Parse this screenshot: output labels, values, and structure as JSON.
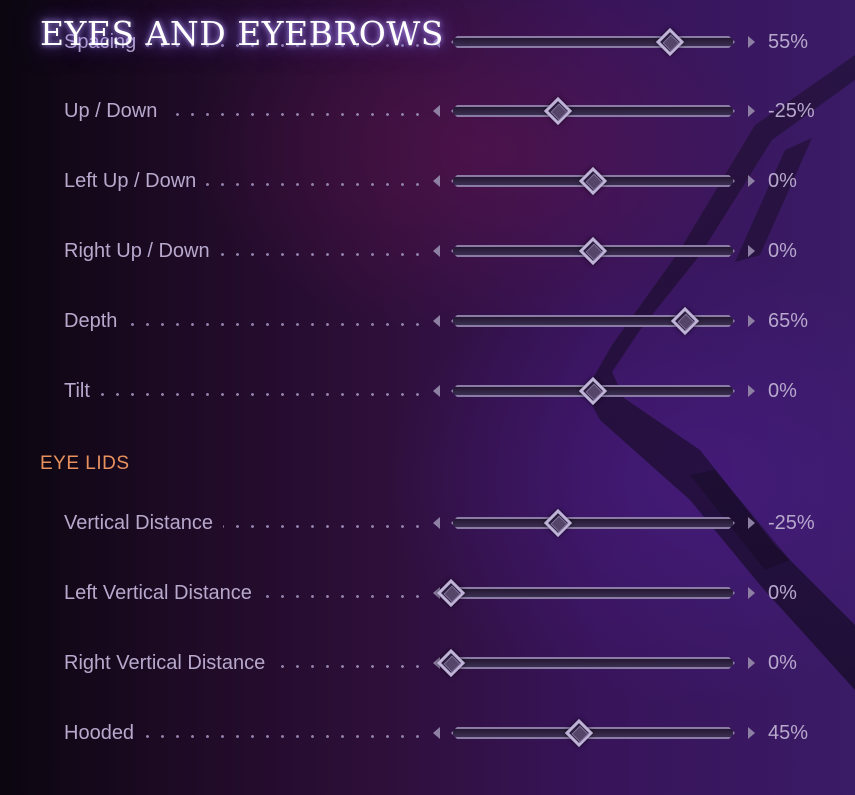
{
  "header": {
    "title": "EYES AND EYEBROWS"
  },
  "sections": [
    {
      "title": "",
      "rows": [
        {
          "label": "Spacing",
          "value_text": "55%",
          "slider": 0.77
        },
        {
          "label": "Up / Down",
          "value_text": "-25%",
          "slider": 0.375
        },
        {
          "label": "Left Up / Down",
          "value_text": "0%",
          "slider": 0.5
        },
        {
          "label": "Right Up / Down",
          "value_text": "0%",
          "slider": 0.5
        },
        {
          "label": "Depth",
          "value_text": "65%",
          "slider": 0.825
        },
        {
          "label": "Tilt",
          "value_text": "0%",
          "slider": 0.5
        }
      ]
    },
    {
      "title": "EYE LIDS",
      "rows": [
        {
          "label": "Vertical Distance",
          "value_text": "-25%",
          "slider": 0.375
        },
        {
          "label": "Left Vertical Distance",
          "value_text": "0%",
          "slider": 0.0
        },
        {
          "label": "Right Vertical Distance",
          "value_text": "0%",
          "slider": 0.0
        },
        {
          "label": "Hooded",
          "value_text": "45%",
          "slider": 0.45
        }
      ]
    }
  ],
  "colors": {
    "header_text": "#ffffff",
    "section_title": "#e8915d",
    "label_text": "#b7a8cc",
    "slider_border": "#8a7ca4",
    "knob_border": "#c0b3d8"
  },
  "icons": {
    "decrease": "caret-left-icon",
    "increase": "caret-right-icon",
    "knob": "diamond-knob-icon"
  }
}
